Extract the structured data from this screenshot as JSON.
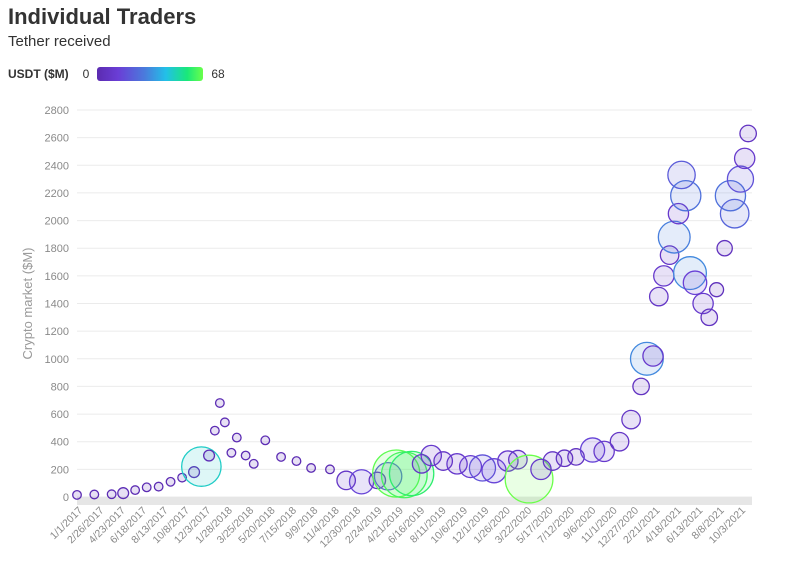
{
  "title": "Individual Traders",
  "subtitle": "Tether received",
  "legend": {
    "label": "USDT ($M)",
    "min": "0",
    "max": "68"
  },
  "chart_data": {
    "type": "scatter",
    "title": "Individual Traders",
    "subtitle": "Tether received",
    "ylabel": "Crypto market ($M)",
    "xlabel": "",
    "ylim": [
      0,
      2800
    ],
    "y_ticks": [
      0,
      200,
      400,
      600,
      800,
      1000,
      1200,
      1400,
      1600,
      1800,
      2000,
      2200,
      2400,
      2600,
      2800
    ],
    "x_tick_labels": [
      "1/1/2017",
      "2/26/2017",
      "4/23/2017",
      "6/18/2017",
      "8/13/2017",
      "10/8/2017",
      "12/3/2017",
      "1/28/2018",
      "3/25/2018",
      "5/20/2018",
      "7/15/2018",
      "9/9/2018",
      "11/4/2018",
      "12/30/2018",
      "2/24/2019",
      "4/21/2019",
      "6/16/2019",
      "8/11/2019",
      "10/6/2019",
      "12/1/2019",
      "1/26/2020",
      "3/22/2020",
      "5/17/2020",
      "7/12/2020",
      "9/6/2020",
      "11/1/2020",
      "12/27/2020",
      "2/21/2021",
      "4/18/2021",
      "6/13/2021",
      "8/8/2021",
      "10/3/2021"
    ],
    "color_scale": {
      "label": "USDT ($M)",
      "min": 0,
      "max": 68,
      "colors": [
        "#5b2bb0",
        "#6a3ed6",
        "#4a7bdc",
        "#22c0e8",
        "#19e87a",
        "#6aff4a"
      ]
    },
    "grid": true,
    "series": [
      {
        "points": [
          {
            "x": "2017-01-01",
            "y": 15,
            "usdt": 1
          },
          {
            "x": "2017-02-15",
            "y": 18,
            "usdt": 1
          },
          {
            "x": "2017-04-01",
            "y": 20,
            "usdt": 1
          },
          {
            "x": "2017-05-01",
            "y": 28,
            "usdt": 2
          },
          {
            "x": "2017-06-01",
            "y": 50,
            "usdt": 1
          },
          {
            "x": "2017-07-01",
            "y": 70,
            "usdt": 1
          },
          {
            "x": "2017-08-01",
            "y": 75,
            "usdt": 1
          },
          {
            "x": "2017-09-01",
            "y": 110,
            "usdt": 1
          },
          {
            "x": "2017-10-01",
            "y": 140,
            "usdt": 1
          },
          {
            "x": "2017-11-01",
            "y": 180,
            "usdt": 2
          },
          {
            "x": "2017-11-20",
            "y": 220,
            "usdt": 45
          },
          {
            "x": "2017-12-10",
            "y": 300,
            "usdt": 2
          },
          {
            "x": "2017-12-25",
            "y": 480,
            "usdt": 1
          },
          {
            "x": "2018-01-07",
            "y": 680,
            "usdt": 1
          },
          {
            "x": "2018-01-20",
            "y": 540,
            "usdt": 1
          },
          {
            "x": "2018-02-06",
            "y": 320,
            "usdt": 1
          },
          {
            "x": "2018-02-20",
            "y": 430,
            "usdt": 1
          },
          {
            "x": "2018-03-15",
            "y": 300,
            "usdt": 1
          },
          {
            "x": "2018-04-05",
            "y": 240,
            "usdt": 1
          },
          {
            "x": "2018-05-05",
            "y": 410,
            "usdt": 1
          },
          {
            "x": "2018-06-15",
            "y": 290,
            "usdt": 1
          },
          {
            "x": "2018-07-25",
            "y": 260,
            "usdt": 1
          },
          {
            "x": "2018-09-01",
            "y": 210,
            "usdt": 1
          },
          {
            "x": "2018-10-20",
            "y": 200,
            "usdt": 1
          },
          {
            "x": "2018-12-01",
            "y": 120,
            "usdt": 8
          },
          {
            "x": "2019-01-10",
            "y": 110,
            "usdt": 15
          },
          {
            "x": "2019-02-20",
            "y": 120,
            "usdt": 6
          },
          {
            "x": "2019-03-20",
            "y": 150,
            "usdt": 20
          },
          {
            "x": "2019-04-10",
            "y": 170,
            "usdt": 66
          },
          {
            "x": "2019-05-01",
            "y": 160,
            "usdt": 62
          },
          {
            "x": "2019-05-20",
            "y": 170,
            "usdt": 58
          },
          {
            "x": "2019-06-15",
            "y": 240,
            "usdt": 8
          },
          {
            "x": "2019-07-10",
            "y": 300,
            "usdt": 10
          },
          {
            "x": "2019-08-10",
            "y": 260,
            "usdt": 8
          },
          {
            "x": "2019-09-15",
            "y": 240,
            "usdt": 10
          },
          {
            "x": "2019-10-20",
            "y": 220,
            "usdt": 12
          },
          {
            "x": "2019-11-20",
            "y": 210,
            "usdt": 18
          },
          {
            "x": "2019-12-20",
            "y": 190,
            "usdt": 15
          },
          {
            "x": "2020-01-25",
            "y": 260,
            "usdt": 10
          },
          {
            "x": "2020-02-20",
            "y": 270,
            "usdt": 8
          },
          {
            "x": "2020-03-20",
            "y": 130,
            "usdt": 68
          },
          {
            "x": "2020-04-20",
            "y": 200,
            "usdt": 10
          },
          {
            "x": "2020-05-20",
            "y": 260,
            "usdt": 8
          },
          {
            "x": "2020-06-20",
            "y": 280,
            "usdt": 6
          },
          {
            "x": "2020-07-20",
            "y": 290,
            "usdt": 6
          },
          {
            "x": "2020-09-01",
            "y": 340,
            "usdt": 15
          },
          {
            "x": "2020-10-01",
            "y": 330,
            "usdt": 10
          },
          {
            "x": "2020-11-10",
            "y": 400,
            "usdt": 8
          },
          {
            "x": "2020-12-10",
            "y": 560,
            "usdt": 8
          },
          {
            "x": "2021-01-05",
            "y": 800,
            "usdt": 6
          },
          {
            "x": "2021-01-20",
            "y": 1000,
            "usdt": 30
          },
          {
            "x": "2021-02-05",
            "y": 1020,
            "usdt": 10
          },
          {
            "x": "2021-02-20",
            "y": 1450,
            "usdt": 8
          },
          {
            "x": "2021-03-05",
            "y": 1600,
            "usdt": 10
          },
          {
            "x": "2021-03-20",
            "y": 1750,
            "usdt": 8
          },
          {
            "x": "2021-04-01",
            "y": 1880,
            "usdt": 28
          },
          {
            "x": "2021-04-12",
            "y": 2050,
            "usdt": 10
          },
          {
            "x": "2021-04-20",
            "y": 2330,
            "usdt": 20
          },
          {
            "x": "2021-05-01",
            "y": 2180,
            "usdt": 25
          },
          {
            "x": "2021-05-12",
            "y": 1620,
            "usdt": 30
          },
          {
            "x": "2021-05-25",
            "y": 1550,
            "usdt": 14
          },
          {
            "x": "2021-06-15",
            "y": 1400,
            "usdt": 10
          },
          {
            "x": "2021-07-01",
            "y": 1300,
            "usdt": 6
          },
          {
            "x": "2021-07-20",
            "y": 1500,
            "usdt": 4
          },
          {
            "x": "2021-08-10",
            "y": 1800,
            "usdt": 5
          },
          {
            "x": "2021-08-25",
            "y": 2180,
            "usdt": 25
          },
          {
            "x": "2021-09-05",
            "y": 2050,
            "usdt": 22
          },
          {
            "x": "2021-09-20",
            "y": 2300,
            "usdt": 18
          },
          {
            "x": "2021-10-01",
            "y": 2450,
            "usdt": 10
          },
          {
            "x": "2021-10-10",
            "y": 2630,
            "usdt": 6
          }
        ]
      }
    ]
  }
}
